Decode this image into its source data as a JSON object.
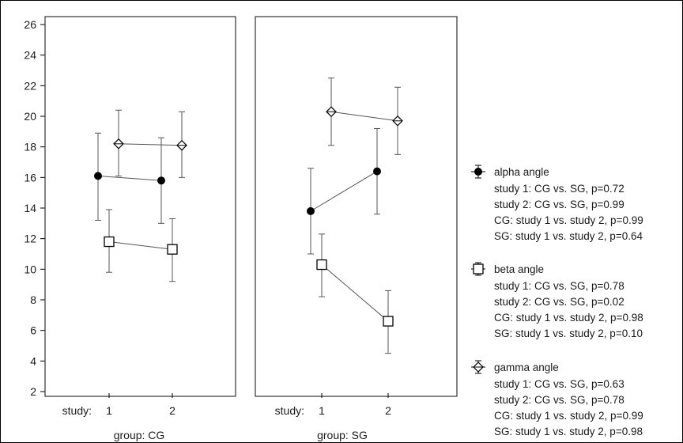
{
  "chart_data": {
    "type": "line",
    "title": "",
    "ylabel": "",
    "ylim": [
      2,
      26
    ],
    "yticks": [
      2,
      4,
      6,
      8,
      10,
      12,
      14,
      16,
      18,
      20,
      22,
      24,
      26
    ],
    "x_prefix": "study:",
    "x_categories": [
      "1",
      "2"
    ],
    "grid": false,
    "legend_position": "right",
    "panels": [
      {
        "label": "group: CG",
        "series": [
          {
            "name": "alpha angle",
            "marker": "circle-filled",
            "values": [
              16.1,
              15.8
            ],
            "lower": [
              13.2,
              13.0
            ],
            "upper": [
              18.9,
              18.6
            ]
          },
          {
            "name": "beta angle",
            "marker": "square",
            "values": [
              11.8,
              11.3
            ],
            "lower": [
              9.8,
              9.2
            ],
            "upper": [
              13.9,
              13.3
            ]
          },
          {
            "name": "gamma angle",
            "marker": "diamond",
            "values": [
              18.2,
              18.1
            ],
            "lower": [
              16.1,
              16.0
            ],
            "upper": [
              20.4,
              20.3
            ]
          }
        ]
      },
      {
        "label": "group: SG",
        "series": [
          {
            "name": "alpha angle",
            "marker": "circle-filled",
            "values": [
              13.8,
              16.4
            ],
            "lower": [
              11.0,
              13.6
            ],
            "upper": [
              16.6,
              19.2
            ]
          },
          {
            "name": "beta angle",
            "marker": "square",
            "values": [
              10.3,
              6.6
            ],
            "lower": [
              8.2,
              4.5
            ],
            "upper": [
              12.3,
              8.6
            ]
          },
          {
            "name": "gamma angle",
            "marker": "diamond",
            "values": [
              20.3,
              19.7
            ],
            "lower": [
              18.1,
              17.5
            ],
            "upper": [
              22.5,
              21.9
            ]
          }
        ]
      }
    ],
    "legend": [
      {
        "name": "alpha angle",
        "marker": "circle-filled",
        "notes": [
          "study 1: CG vs. SG, p=0.72",
          "study 2: CG vs. SG, p=0.99",
          "CG: study 1 vs. study 2, p=0.99",
          "SG: study 1 vs. study 2, p=0.64"
        ]
      },
      {
        "name": "beta angle",
        "marker": "square",
        "notes": [
          "study 1: CG vs. SG, p=0.78",
          "study 2: CG vs. SG, p=0.02",
          "CG: study 1 vs. study 2, p=0.98",
          "SG: study 1 vs. study 2, p=0.10"
        ]
      },
      {
        "name": "gamma angle",
        "marker": "diamond",
        "notes": [
          "study 1: CG vs. SG, p=0.63",
          "study 2: CG vs. SG, p=0.78",
          "CG: study 1 vs. study 2, p=0.99",
          "SG: study 1 vs. study 2, p=0.98"
        ]
      }
    ]
  }
}
